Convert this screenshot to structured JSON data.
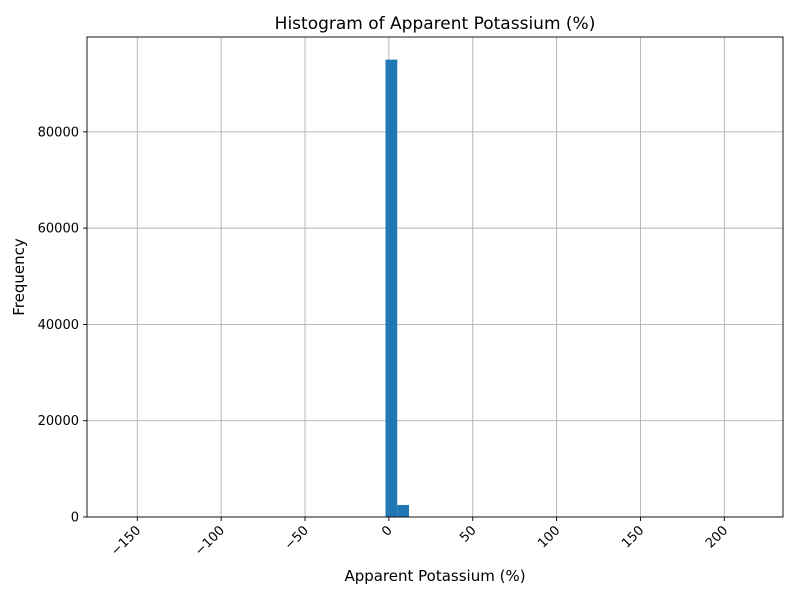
{
  "chart_data": {
    "type": "bar",
    "title": "Histogram of Apparent Potassium (%)",
    "xlabel": "Apparent Potassium (%)",
    "ylabel": "Frequency",
    "xlim": [
      -180,
      235
    ],
    "ylim": [
      0,
      99700
    ],
    "xticks": [
      -150,
      -100,
      -50,
      0,
      50,
      100,
      150,
      200
    ],
    "xtick_labels": [
      "−150",
      "−100",
      "−50",
      "0",
      "50",
      "100",
      "150",
      "200"
    ],
    "yticks": [
      0,
      20000,
      40000,
      60000,
      80000
    ],
    "ytick_labels": [
      "0",
      "20000",
      "40000",
      "60000",
      "80000"
    ],
    "grid": true,
    "bar_color": "#1f77b4",
    "bins": [
      {
        "x0": -2,
        "x1": 0,
        "count": 95000
      },
      {
        "x0": 0,
        "x1": 5,
        "count": 95000
      },
      {
        "x0": 5,
        "x1": 12,
        "count": 2500
      }
    ]
  }
}
